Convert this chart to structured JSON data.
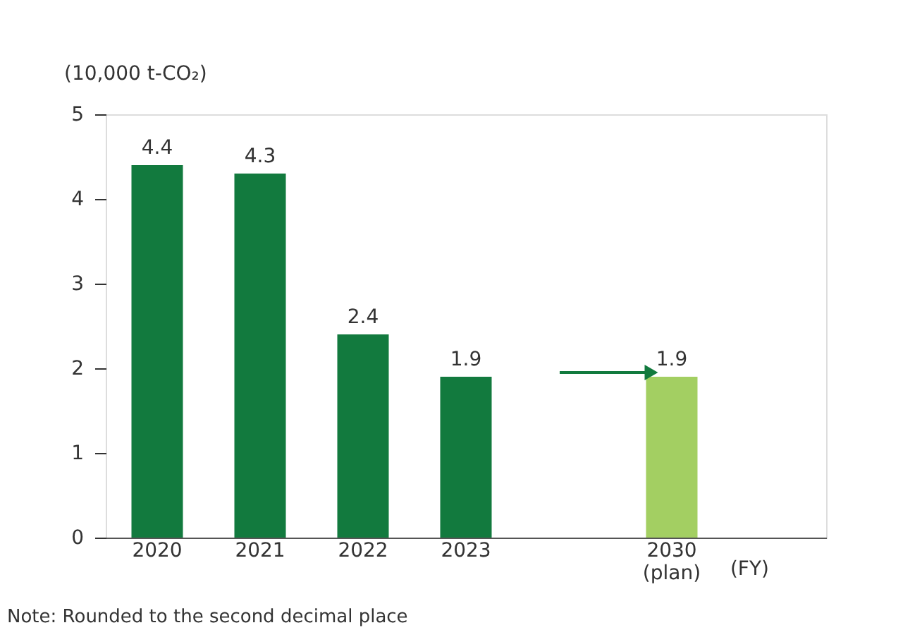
{
  "chart_data": {
    "type": "bar",
    "ylabel": "(10,000 t-CO₂)",
    "xlabel": "(FY)",
    "categories": [
      "2020",
      "2021",
      "2022",
      "2023",
      null,
      "2030\n(plan)"
    ],
    "values": [
      4.4,
      4.3,
      2.4,
      1.9,
      null,
      1.9
    ],
    "colors": [
      "#127a3e",
      "#127a3e",
      "#127a3e",
      "#127a3e",
      "#127a3e",
      "#a3cf62"
    ],
    "ylim": [
      0,
      5
    ],
    "yticks": [
      0,
      1,
      2,
      3,
      4,
      5
    ],
    "grid": false,
    "data_labels": true,
    "annotations": [
      "Note: Rounded to the second decimal place"
    ]
  }
}
